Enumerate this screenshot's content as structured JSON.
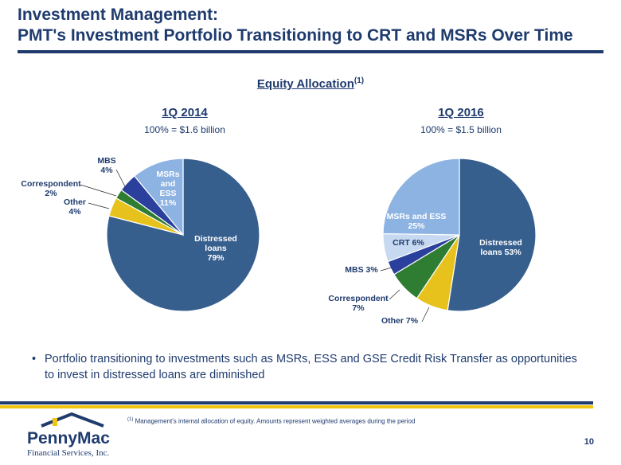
{
  "title_line1": "Investment Management:",
  "title_line2": "PMT's Investment Portfolio Transitioning to CRT and MSRs Over Time",
  "section_title": "Equity Allocation",
  "section_sup": "(1)",
  "bullet": "Portfolio transitioning to investments such as MSRs, ESS and GSE Credit Risk Transfer as opportunities to invest in distressed loans are diminished",
  "footnote_sup": "(1)",
  "footnote": "Management's internal allocation of equity.  Amounts represent weighted averages during the period",
  "page_number": "10",
  "logo": {
    "name": "PennyMac",
    "sub": "Financial Services, Inc."
  },
  "colors": {
    "navy": "#365f8e",
    "gold": "#e8c21c",
    "green": "#2e7d32",
    "blue": "#2b3f9c",
    "lightblue": "#8db3e2",
    "paleblue": "#c6d9f0",
    "title": "#1f3b6e"
  },
  "chart_data": [
    {
      "type": "pie",
      "title": "1Q 2014",
      "subtitle": "100% = $1.6 billion",
      "slices": [
        {
          "label": "Distressed loans",
          "value": 79,
          "color": "#365f8e"
        },
        {
          "label": "Other",
          "value": 4,
          "color": "#e8c21c"
        },
        {
          "label": "Correspondent",
          "value": 2,
          "color": "#2e7d32"
        },
        {
          "label": "MBS",
          "value": 4,
          "color": "#2b3f9c"
        },
        {
          "label": "MSRs and ESS",
          "value": 11,
          "color": "#8db3e2"
        }
      ]
    },
    {
      "type": "pie",
      "title": "1Q 2016",
      "subtitle": "100% = $1.5 billion",
      "slices": [
        {
          "label": "Distressed loans",
          "value": 53,
          "color": "#365f8e"
        },
        {
          "label": "Other",
          "value": 7,
          "color": "#e8c21c"
        },
        {
          "label": "Correspondent",
          "value": 7,
          "color": "#2e7d32"
        },
        {
          "label": "MBS",
          "value": 3,
          "color": "#2b3f9c"
        },
        {
          "label": "CRT",
          "value": 6,
          "color": "#c6d9f0"
        },
        {
          "label": "MSRs and ESS",
          "value": 25,
          "color": "#8db3e2"
        }
      ]
    }
  ]
}
